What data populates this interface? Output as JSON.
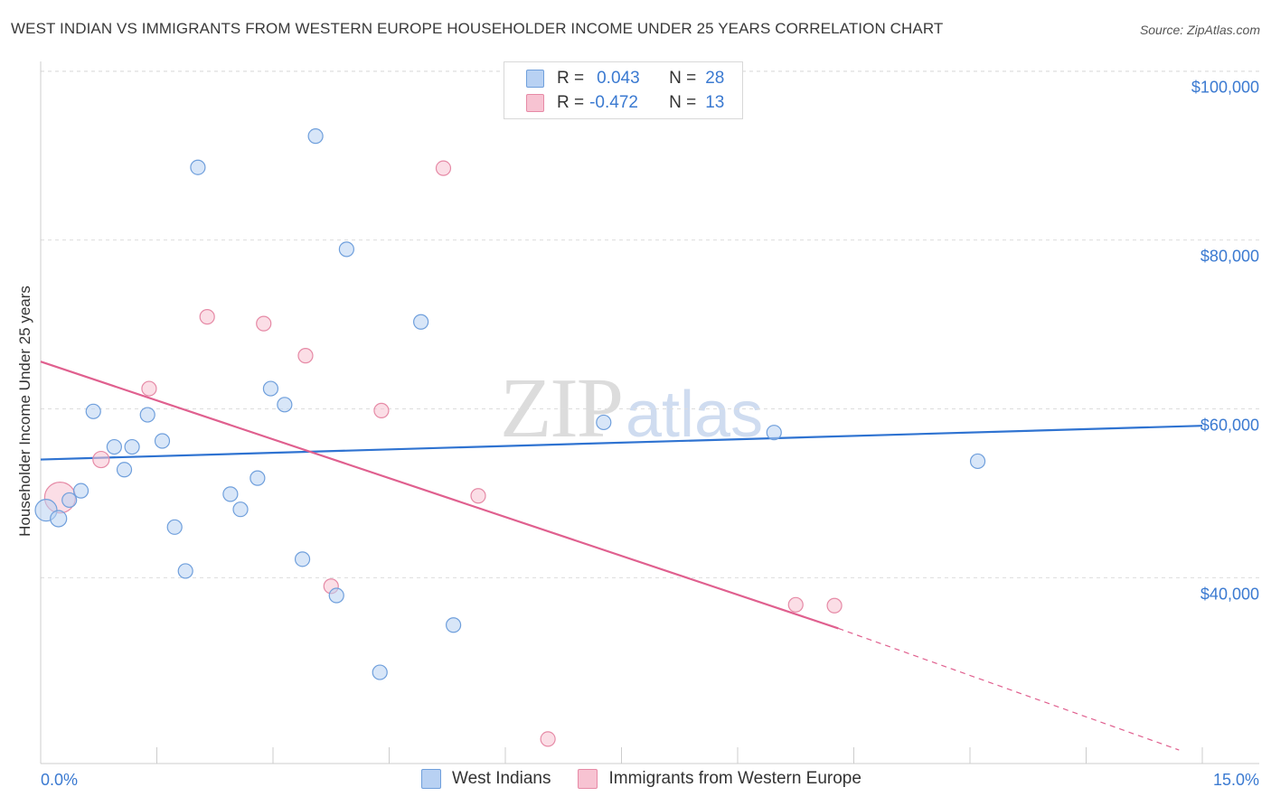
{
  "header": {
    "title": "WEST INDIAN VS IMMIGRANTS FROM WESTERN EUROPE HOUSEHOLDER INCOME UNDER 25 YEARS CORRELATION CHART",
    "source": "Source: ZipAtlas.com"
  },
  "watermark": {
    "zip": "ZIP",
    "atlas": "atlas"
  },
  "legend": {
    "series1": {
      "r_label": "R =",
      "r_value": "0.043",
      "n_label": "N =",
      "n_value": "28"
    },
    "series2": {
      "r_label": "R =",
      "r_value": "-0.472",
      "n_label": "N =",
      "n_value": "13"
    }
  },
  "bottom_legend": {
    "series1": "West Indians",
    "series2": "Immigrants from Western Europe"
  },
  "colors": {
    "blue_fill": "#b8d1f3",
    "blue_stroke": "#6f9fdc",
    "blue_line": "#2f73d1",
    "pink_fill": "#f7c3d2",
    "pink_stroke": "#e68aa6",
    "pink_line": "#e0608f",
    "tick_text": "#3b7ad1",
    "grid": "#dddddd"
  },
  "chart_data": {
    "type": "scatter",
    "title": "WEST INDIAN VS IMMIGRANTS FROM WESTERN EUROPE HOUSEHOLDER INCOME UNDER 25 YEARS CORRELATION CHART",
    "xlabel": "",
    "ylabel": "Householder Income Under 25 years",
    "xlim": [
      0,
      15
    ],
    "ylim": [
      18000,
      102000
    ],
    "x_tick_labels": [
      {
        "value": 0,
        "label": "0.0%"
      },
      {
        "value": 15,
        "label": "15.0%"
      }
    ],
    "y_ticks": [
      {
        "value": 40000,
        "label": "$40,000"
      },
      {
        "value": 60000,
        "label": "$60,000"
      },
      {
        "value": 80000,
        "label": "$80,000"
      },
      {
        "value": 100000,
        "label": "$100,000"
      }
    ],
    "series": [
      {
        "name": "West Indians",
        "r": 0.043,
        "n": 28,
        "trend": {
          "x0": 0,
          "y0": 54000,
          "x1": 15,
          "y1": 58000
        },
        "points": [
          {
            "x": 0.07,
            "y": 48000,
            "size": 12
          },
          {
            "x": 0.23,
            "y": 47000,
            "size": 9
          },
          {
            "x": 0.37,
            "y": 49200,
            "size": 8
          },
          {
            "x": 0.52,
            "y": 50300,
            "size": 8
          },
          {
            "x": 0.68,
            "y": 59700,
            "size": 8
          },
          {
            "x": 0.95,
            "y": 55500,
            "size": 8
          },
          {
            "x": 1.08,
            "y": 52800,
            "size": 8
          },
          {
            "x": 1.18,
            "y": 55500,
            "size": 8
          },
          {
            "x": 1.38,
            "y": 59300,
            "size": 8
          },
          {
            "x": 1.57,
            "y": 56200,
            "size": 8
          },
          {
            "x": 1.73,
            "y": 46000,
            "size": 8
          },
          {
            "x": 1.87,
            "y": 40800,
            "size": 8
          },
          {
            "x": 2.03,
            "y": 88600,
            "size": 8
          },
          {
            "x": 2.45,
            "y": 49900,
            "size": 8
          },
          {
            "x": 2.58,
            "y": 48100,
            "size": 8
          },
          {
            "x": 2.8,
            "y": 51800,
            "size": 8
          },
          {
            "x": 2.97,
            "y": 62400,
            "size": 8
          },
          {
            "x": 3.15,
            "y": 60500,
            "size": 8
          },
          {
            "x": 3.38,
            "y": 42200,
            "size": 8
          },
          {
            "x": 3.55,
            "y": 92300,
            "size": 8
          },
          {
            "x": 3.82,
            "y": 37900,
            "size": 8
          },
          {
            "x": 3.95,
            "y": 78900,
            "size": 8
          },
          {
            "x": 4.38,
            "y": 28800,
            "size": 8
          },
          {
            "x": 4.91,
            "y": 70300,
            "size": 8
          },
          {
            "x": 5.33,
            "y": 34400,
            "size": 8
          },
          {
            "x": 7.27,
            "y": 58400,
            "size": 8
          },
          {
            "x": 9.47,
            "y": 57200,
            "size": 8
          },
          {
            "x": 12.1,
            "y": 53800,
            "size": 8
          }
        ]
      },
      {
        "name": "Immigrants from Western Europe",
        "r": -0.472,
        "n": 13,
        "trend": {
          "x0": 0,
          "y0": 65600,
          "x1": 10.3,
          "y1": 34000,
          "dashed_to_x": 14.7,
          "dashed_to_y": 19600
        },
        "points": [
          {
            "x": 0.25,
            "y": 49500,
            "size": 17
          },
          {
            "x": 0.78,
            "y": 54000,
            "size": 9
          },
          {
            "x": 1.4,
            "y": 62400,
            "size": 8
          },
          {
            "x": 2.15,
            "y": 70900,
            "size": 8
          },
          {
            "x": 2.88,
            "y": 70100,
            "size": 8
          },
          {
            "x": 3.42,
            "y": 66300,
            "size": 8
          },
          {
            "x": 3.75,
            "y": 39000,
            "size": 8
          },
          {
            "x": 4.4,
            "y": 59800,
            "size": 8
          },
          {
            "x": 5.2,
            "y": 88500,
            "size": 8
          },
          {
            "x": 5.65,
            "y": 49700,
            "size": 8
          },
          {
            "x": 6.55,
            "y": 20900,
            "size": 8
          },
          {
            "x": 9.75,
            "y": 36800,
            "size": 8
          },
          {
            "x": 10.25,
            "y": 36700,
            "size": 8
          }
        ]
      }
    ]
  }
}
